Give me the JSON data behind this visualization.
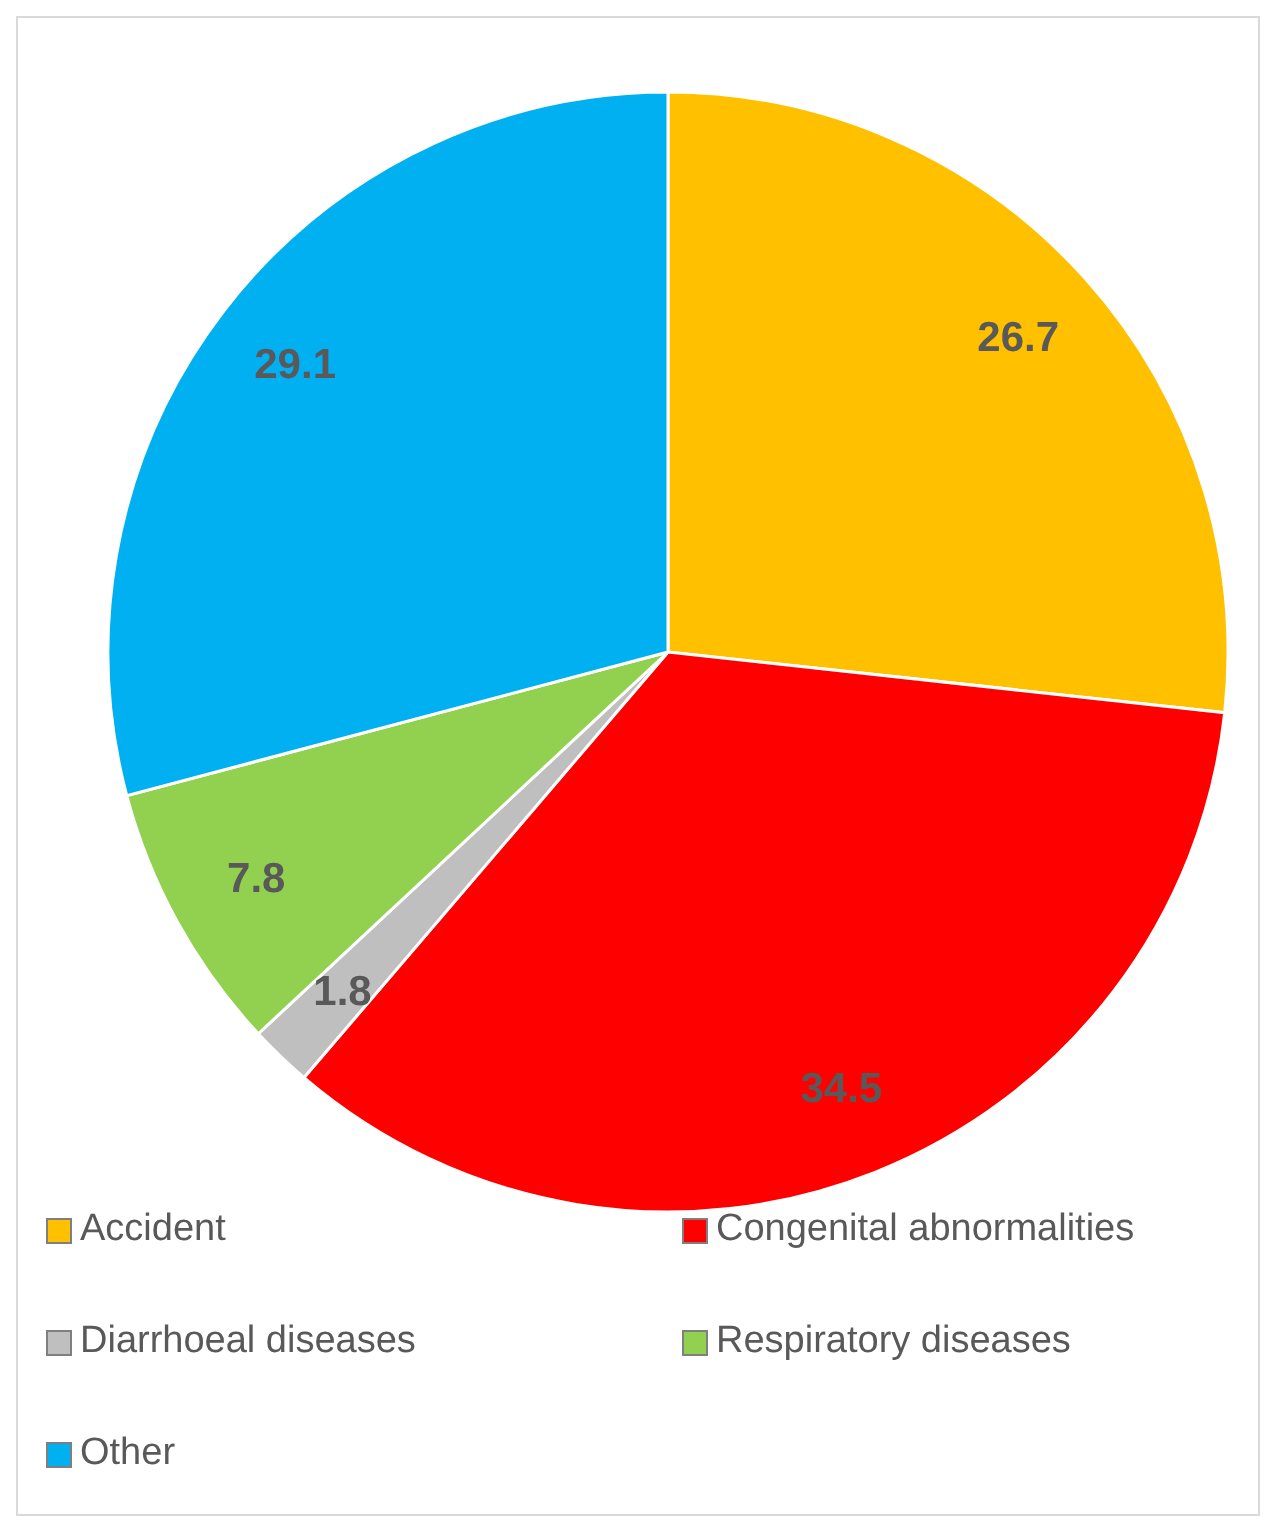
{
  "chart_data": {
    "type": "pie",
    "categories": [
      "Accident",
      "Congenital abnormalities",
      "Diarrhoeal diseases",
      "Respiratory diseases",
      "Other"
    ],
    "values": [
      26.7,
      34.5,
      1.8,
      7.8,
      29.1
    ],
    "colors": [
      "#ffc000",
      "#ff0000",
      "#bfbfbf",
      "#92d050",
      "#00b0f0"
    ],
    "data_labels": true,
    "legend": "bottom"
  }
}
